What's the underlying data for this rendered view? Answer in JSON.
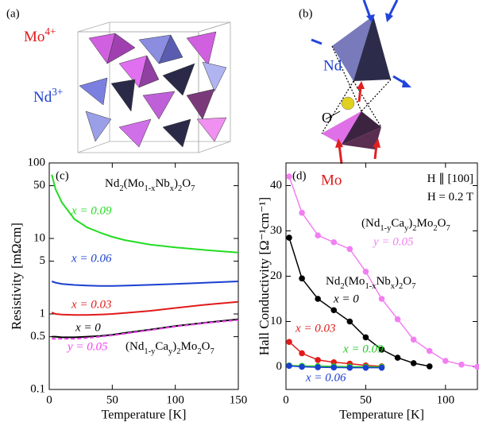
{
  "panel_labels": [
    "(a)",
    "(b)"
  ],
  "diagram_a": {
    "labels": [
      {
        "parts": [
          "Mo",
          "4+"
        ]
      },
      {
        "parts": [
          "Nd",
          "3+"
        ]
      }
    ]
  },
  "diagram_b": {
    "labels": [
      "Nd",
      "O",
      "Mo"
    ]
  },
  "chart_data": [
    {
      "type": "line",
      "panel_label": "(c)",
      "xlabel": "Temperature [K]",
      "ylabel": "Resistivity [mΩcm]",
      "log_y": true,
      "markers": false,
      "x": [
        2,
        5,
        10,
        20,
        30,
        40,
        50,
        60,
        80,
        100,
        125,
        150
      ],
      "xlim": [
        0,
        150
      ],
      "xticks": [
        0,
        50,
        100,
        150
      ],
      "ylim": [
        0.1,
        100
      ],
      "yticks": [
        0.1,
        0.5,
        1,
        5,
        10,
        50,
        100
      ],
      "series": [
        {
          "name": "x = 0.09",
          "color": "#22dd22",
          "dashed": false,
          "values": [
            70,
            45,
            30,
            18,
            14,
            12,
            10.5,
            9.5,
            8.3,
            7.6,
            7,
            6.5
          ]
        },
        {
          "name": "x = 0.06",
          "color": "#1a3fd0",
          "dashed": false,
          "values": [
            2.7,
            2.6,
            2.5,
            2.42,
            2.38,
            2.35,
            2.35,
            2.37,
            2.43,
            2.5,
            2.6,
            2.7
          ]
        },
        {
          "name": "x = 0.03",
          "color": "#e01a1a",
          "dashed": false,
          "values": [
            1.05,
            1.0,
            0.98,
            0.97,
            0.97,
            0.98,
            1.0,
            1.03,
            1.1,
            1.2,
            1.33,
            1.45
          ]
        },
        {
          "name": "x = 0",
          "color": "#000000",
          "dashed": false,
          "values": [
            0.5,
            0.5,
            0.49,
            0.49,
            0.5,
            0.51,
            0.53,
            0.56,
            0.62,
            0.69,
            0.77,
            0.85
          ]
        },
        {
          "name": "y = 0.05",
          "color": "#ee44ee",
          "dashed": true,
          "values": [
            0.47,
            0.47,
            0.47,
            0.47,
            0.48,
            0.5,
            0.52,
            0.55,
            0.61,
            0.68,
            0.76,
            0.83
          ]
        }
      ],
      "annotations": [
        {
          "parts": [
            "Nd",
            "2",
            "(Mo",
            "1-x",
            "Nb",
            "x",
            ")",
            "2",
            "O",
            "7"
          ]
        },
        {
          "parts": [
            "(Nd",
            "1-y",
            "Ca",
            "y",
            ")",
            "2",
            "Mo",
            "2",
            "O",
            "7"
          ]
        }
      ]
    },
    {
      "type": "line",
      "panel_label": "(d)",
      "xlabel": "Temperature [K]",
      "ylabel": "Hall Conductivity [Ω⁻¹cm⁻¹]",
      "log_y": false,
      "markers": true,
      "x": [
        2,
        10,
        20,
        30,
        40,
        50,
        60,
        70,
        80,
        90,
        100,
        110,
        120
      ],
      "xlim": [
        0,
        120
      ],
      "xticks": [
        0,
        50,
        100
      ],
      "ylim": [
        -5,
        45
      ],
      "yticks": [
        0,
        10,
        20,
        30,
        40
      ],
      "series": [
        {
          "name": "y = 0.05",
          "color": "#f27ff2",
          "dashed": false,
          "values": [
            42,
            34,
            29,
            27.5,
            26,
            21,
            15,
            10.5,
            6,
            3.5,
            1.3,
            0.5,
            0
          ]
        },
        {
          "name": "x = 0",
          "color": "#000000",
          "dashed": false,
          "values": [
            28.5,
            19.5,
            15,
            12.5,
            10,
            6.5,
            3.8,
            2,
            0.8,
            0.1,
            null,
            null,
            null
          ]
        },
        {
          "name": "x = 0.03",
          "color": "#e01a1a",
          "dashed": false,
          "values": [
            5.5,
            3,
            1.5,
            1,
            0.7,
            0.3,
            0.1,
            null,
            null,
            null,
            null,
            null,
            null
          ]
        },
        {
          "name": "x = 0.09",
          "color": "#22cc22",
          "dashed": false,
          "values": [
            0.3,
            0.2,
            0.15,
            0.1,
            0.05,
            0,
            0,
            null,
            null,
            null,
            null,
            null,
            null
          ]
        },
        {
          "name": "x = 0.06",
          "color": "#1a3fd0",
          "dashed": false,
          "values": [
            0.2,
            0,
            -0.1,
            -0.15,
            -0.2,
            -0.2,
            -0.2,
            null,
            null,
            null,
            null,
            null,
            null
          ]
        }
      ],
      "annotations": [
        {
          "parts": [
            "H ∥ [100]"
          ]
        },
        {
          "parts": [
            "H = 0.2 T"
          ]
        },
        {
          "parts": [
            "(Nd",
            "1-y",
            "Ca",
            "y",
            ")",
            "2",
            "Mo",
            "2",
            "O",
            "7"
          ]
        },
        {
          "parts": [
            "Nd",
            "2",
            "(Mo",
            "1-x",
            "Nb",
            "x",
            ")",
            "2",
            "O",
            "7"
          ]
        }
      ]
    }
  ]
}
